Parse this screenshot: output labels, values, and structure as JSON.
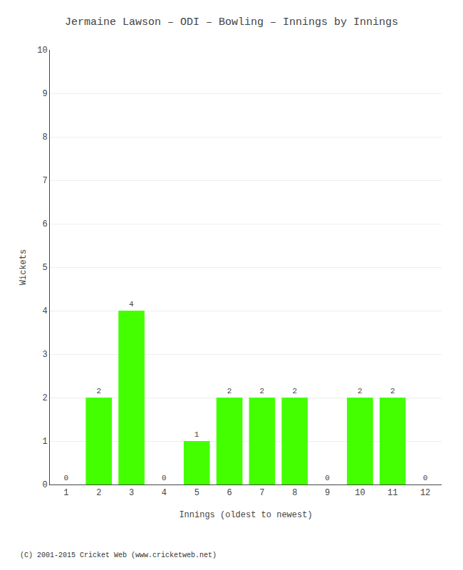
{
  "chart_data": {
    "type": "bar",
    "title": "Jermaine Lawson – ODI – Bowling – Innings by Innings",
    "xlabel": "Innings (oldest to newest)",
    "ylabel": "Wickets",
    "categories": [
      1,
      2,
      3,
      4,
      5,
      6,
      7,
      8,
      9,
      10,
      11,
      12
    ],
    "values": [
      0,
      2,
      4,
      0,
      1,
      2,
      2,
      2,
      0,
      2,
      2,
      0
    ],
    "color": "#44ff00",
    "ylim": [
      0,
      10
    ],
    "yticks": [
      0,
      1,
      2,
      3,
      4,
      5,
      6,
      7,
      8,
      9,
      10
    ],
    "grid": true,
    "data_labels": true,
    "annotations": [
      "(C) 2001-2015 Cricket Web (www.cricketweb.net)"
    ]
  }
}
